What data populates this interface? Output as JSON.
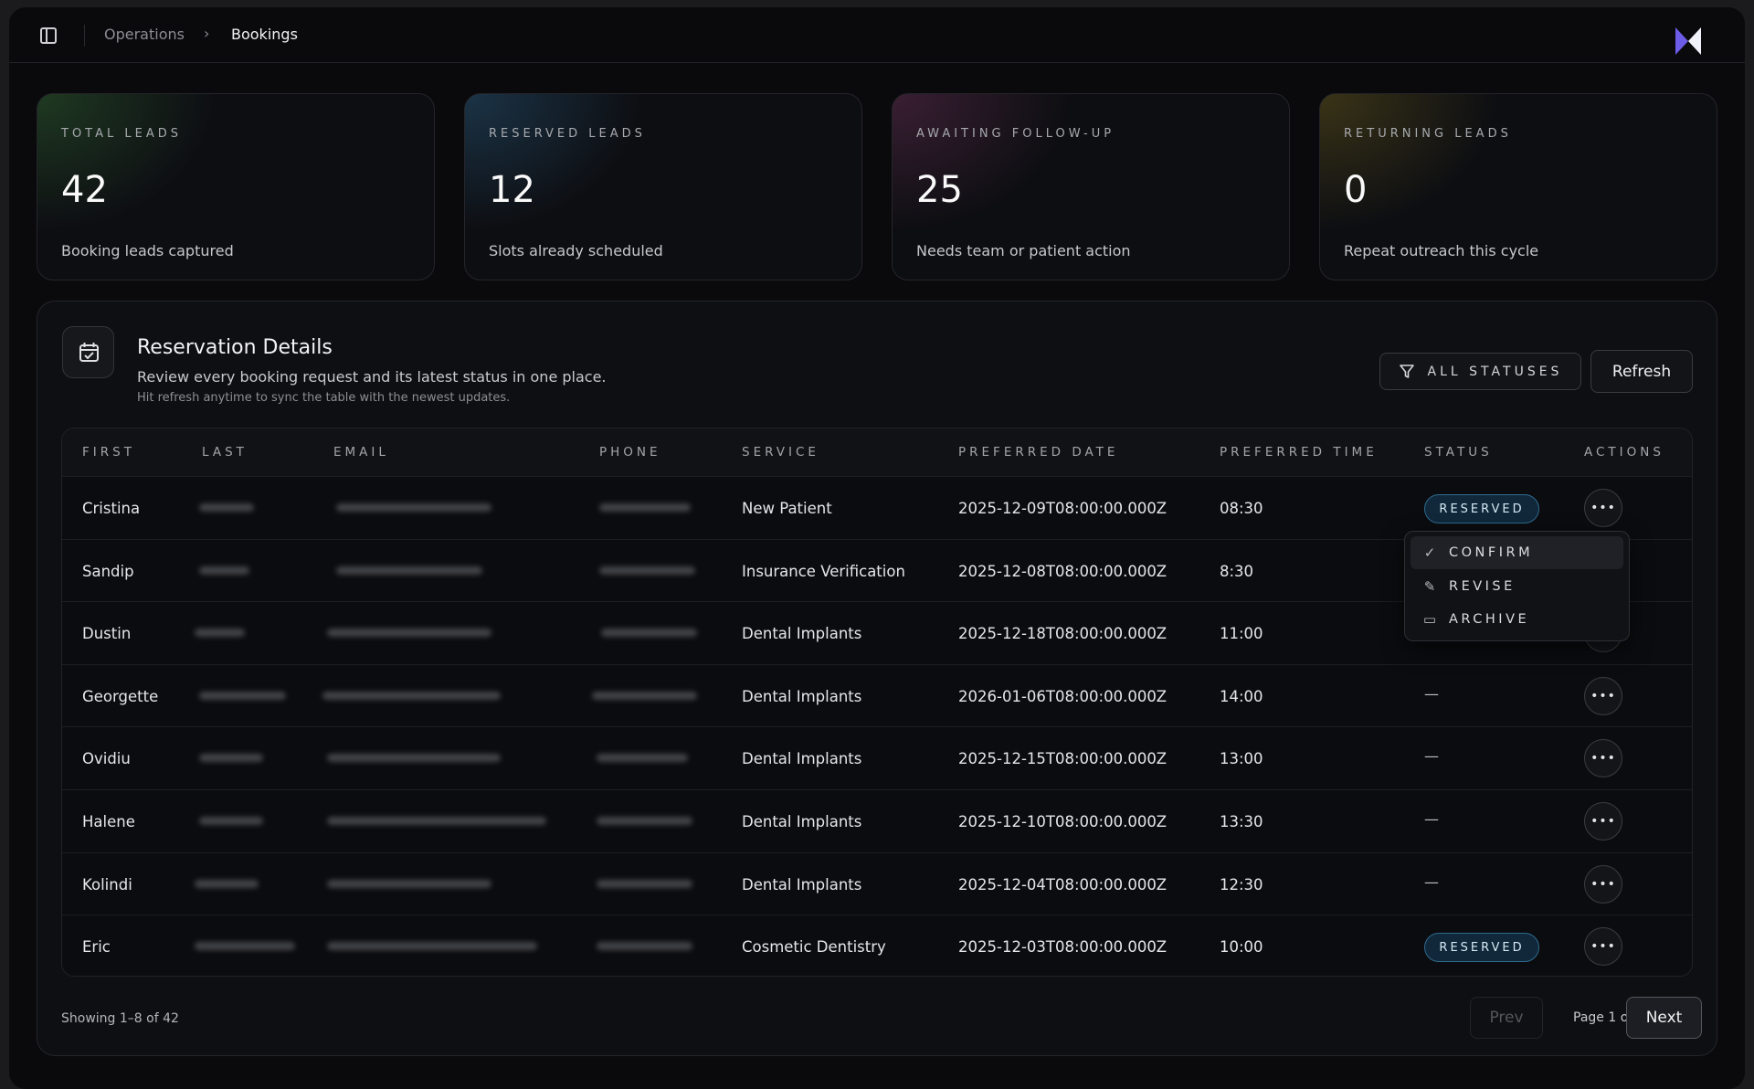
{
  "header": {
    "breadcrumb": [
      "Operations",
      "Bookings"
    ],
    "logo_colors": [
      "#6c5ce7",
      "#f2f2fa"
    ]
  },
  "stats": [
    {
      "label": "TOTAL LEADS",
      "value": "42",
      "caption": "Booking leads captured",
      "tint": "#1f3a22"
    },
    {
      "label": "RESERVED LEADS",
      "value": "12",
      "caption": "Slots already scheduled",
      "tint": "#1b3447"
    },
    {
      "label": "AWAITING FOLLOW-UP",
      "value": "25",
      "caption": "Needs team or patient action",
      "tint": "#3a1f33"
    },
    {
      "label": "RETURNING LEADS",
      "value": "0",
      "caption": "Repeat outreach this cycle",
      "tint": "#3a3417"
    }
  ],
  "panel": {
    "title": "Reservation Details",
    "description": "Review every booking request and its latest status in one place.",
    "hint": "Hit refresh anytime to sync the table with the newest updates.",
    "filter_label": "ALL STATUSES",
    "refresh_label": "Refresh"
  },
  "table": {
    "columns": [
      "FIRST",
      "LAST",
      "EMAIL",
      "PHONE",
      "SERVICE",
      "PREFERRED DATE",
      "PREFERRED TIME",
      "STATUS",
      "ACTIONS"
    ],
    "rows": [
      {
        "first": "Cristina",
        "service": "New Patient",
        "date": "2025-12-09T08:00:00.000Z",
        "time": "08:30",
        "status": "RESERVED"
      },
      {
        "first": "Sandip",
        "service": "Insurance Verification",
        "date": "2025-12-08T08:00:00.000Z",
        "time": "8:30",
        "status": ""
      },
      {
        "first": "Dustin",
        "service": "Dental Implants",
        "date": "2025-12-18T08:00:00.000Z",
        "time": "11:00",
        "status": ""
      },
      {
        "first": "Georgette",
        "service": "Dental Implants",
        "date": "2026-01-06T08:00:00.000Z",
        "time": "14:00",
        "status": "—"
      },
      {
        "first": "Ovidiu",
        "service": "Dental Implants",
        "date": "2025-12-15T08:00:00.000Z",
        "time": "13:00",
        "status": "—"
      },
      {
        "first": "Halene",
        "service": "Dental Implants",
        "date": "2025-12-10T08:00:00.000Z",
        "time": "13:30",
        "status": "—"
      },
      {
        "first": "Kolindi",
        "service": "Dental Implants",
        "date": "2025-12-04T08:00:00.000Z",
        "time": "12:30",
        "status": "—"
      },
      {
        "first": "Eric",
        "service": "Cosmetic Dentistry",
        "date": "2025-12-03T08:00:00.000Z",
        "time": "10:00",
        "status": "RESERVED"
      }
    ],
    "action_glyph": "•••"
  },
  "action_menu": {
    "items": [
      {
        "label": "CONFIRM",
        "icon": "check-icon",
        "glyph": "✓",
        "selected": true
      },
      {
        "label": "REVISE",
        "icon": "pencil-icon",
        "glyph": "✎",
        "selected": false
      },
      {
        "label": "ARCHIVE",
        "icon": "archive-icon",
        "glyph": "▭",
        "selected": false
      }
    ]
  },
  "footer": {
    "showing": "Showing 1–8 of 42",
    "prev_label": "Prev",
    "page_info": "Page 1 of 6",
    "next_label": "Next"
  }
}
